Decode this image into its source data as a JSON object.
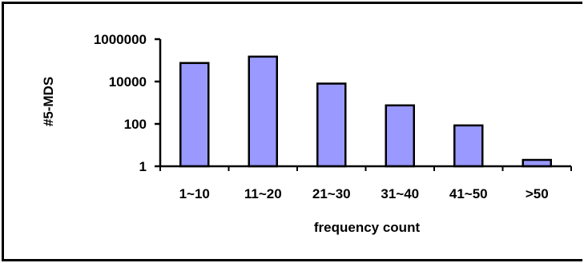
{
  "chart_data": {
    "type": "bar",
    "scale": "log",
    "categories": [
      "1~10",
      "11~20",
      "21~30",
      "31~40",
      "41~50",
      ">50"
    ],
    "values": [
      75000,
      150000,
      8000,
      750,
      85,
      2
    ],
    "ytick_labels": [
      "1",
      "100",
      "10000",
      "1000000"
    ],
    "ytick_values": [
      1,
      100,
      10000,
      1000000
    ],
    "ylim": [
      1,
      1000000
    ],
    "xlabel": "frequency count",
    "ylabel": "#5-MDS",
    "grid": false,
    "legend": "none",
    "bar_color": "#9999ff",
    "bar_edge_color": "#000000"
  }
}
